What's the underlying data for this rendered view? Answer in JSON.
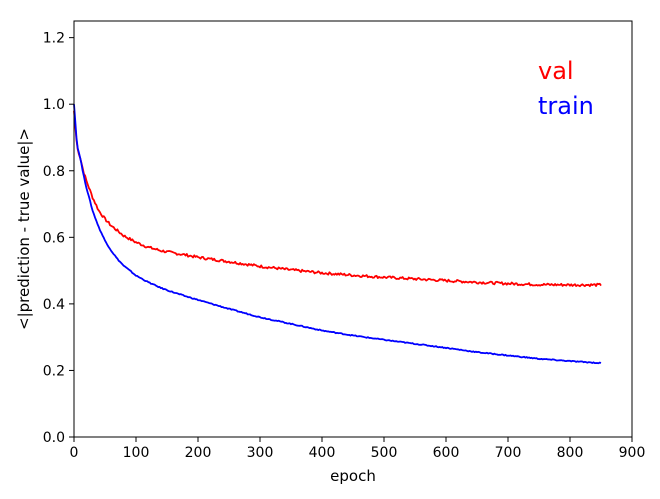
{
  "chart_data": {
    "type": "line",
    "title": "",
    "xlabel": "epoch",
    "ylabel": "<|prediction - true value|>",
    "xlim": [
      0,
      900
    ],
    "ylim": [
      0.0,
      1.25
    ],
    "x_ticks": [
      "0",
      "100",
      "200",
      "300",
      "400",
      "500",
      "600",
      "700",
      "800",
      "900"
    ],
    "y_ticks": [
      "0.0",
      "0.2",
      "0.4",
      "0.6",
      "0.8",
      "1.0",
      "1.2"
    ],
    "grid": false,
    "legend_placement": "top-right",
    "series": [
      {
        "name": "val",
        "color": "#ff0000",
        "x": [
          0,
          5,
          10,
          15,
          20,
          30,
          40,
          50,
          60,
          70,
          80,
          90,
          100,
          120,
          140,
          160,
          180,
          200,
          250,
          300,
          350,
          400,
          450,
          500,
          550,
          600,
          650,
          700,
          750,
          800,
          850
        ],
        "y": [
          0.98,
          0.87,
          0.84,
          0.8,
          0.77,
          0.72,
          0.68,
          0.655,
          0.635,
          0.62,
          0.605,
          0.595,
          0.585,
          0.57,
          0.56,
          0.553,
          0.547,
          0.54,
          0.527,
          0.513,
          0.502,
          0.493,
          0.486,
          0.48,
          0.475,
          0.47,
          0.465,
          0.461,
          0.458,
          0.457,
          0.457
        ]
      },
      {
        "name": "train",
        "color": "#0000ff",
        "x": [
          0,
          5,
          10,
          15,
          20,
          30,
          40,
          50,
          60,
          70,
          80,
          90,
          100,
          120,
          140,
          160,
          180,
          200,
          250,
          300,
          350,
          400,
          450,
          500,
          550,
          600,
          650,
          700,
          750,
          800,
          850
        ],
        "y": [
          1.0,
          0.875,
          0.84,
          0.79,
          0.75,
          0.68,
          0.63,
          0.59,
          0.56,
          0.535,
          0.515,
          0.5,
          0.485,
          0.465,
          0.448,
          0.435,
          0.423,
          0.412,
          0.385,
          0.36,
          0.34,
          0.32,
          0.305,
          0.292,
          0.28,
          0.268,
          0.255,
          0.245,
          0.235,
          0.228,
          0.222
        ]
      }
    ]
  }
}
